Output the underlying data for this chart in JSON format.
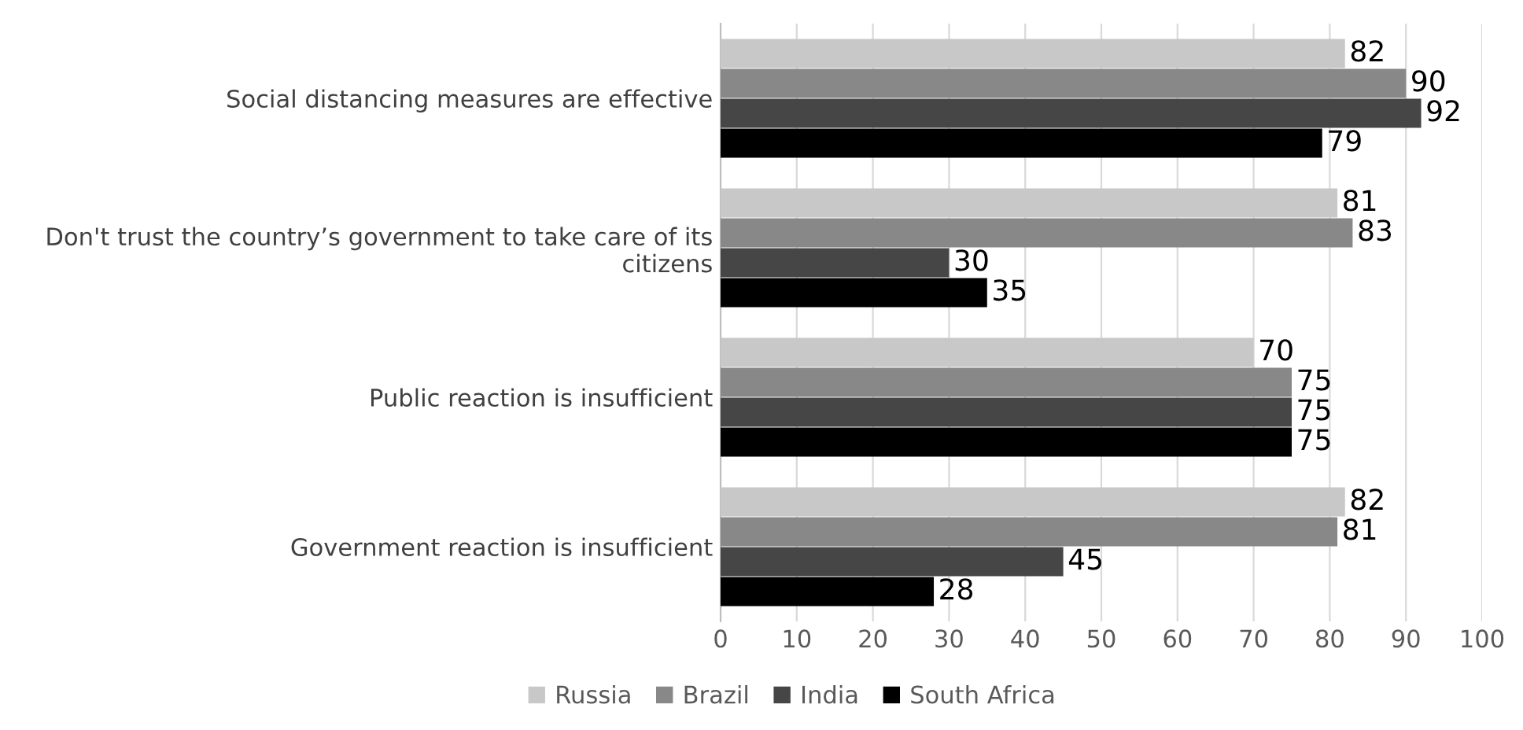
{
  "chart_data": {
    "type": "bar",
    "orientation": "horizontal",
    "categories": [
      "Social distancing measures are effective",
      "Don't trust the country’s government to take care of its citizens",
      "Public reaction is insufficient",
      "Government reaction is insufficient"
    ],
    "series": [
      {
        "name": "Russia",
        "color": "#c8c8c8",
        "values": [
          82,
          81,
          70,
          82
        ]
      },
      {
        "name": "Brazil",
        "color": "#888888",
        "values": [
          90,
          83,
          75,
          81
        ]
      },
      {
        "name": "India",
        "color": "#464646",
        "values": [
          92,
          30,
          75,
          45
        ]
      },
      {
        "name": "South Africa",
        "color": "#000000",
        "values": [
          79,
          35,
          75,
          28
        ]
      }
    ],
    "xlim": [
      0,
      100
    ],
    "xticks": [
      0,
      10,
      20,
      30,
      40,
      50,
      60,
      70,
      80,
      90,
      100
    ],
    "grid": "x",
    "legend": "bottom",
    "data_labels": true
  }
}
